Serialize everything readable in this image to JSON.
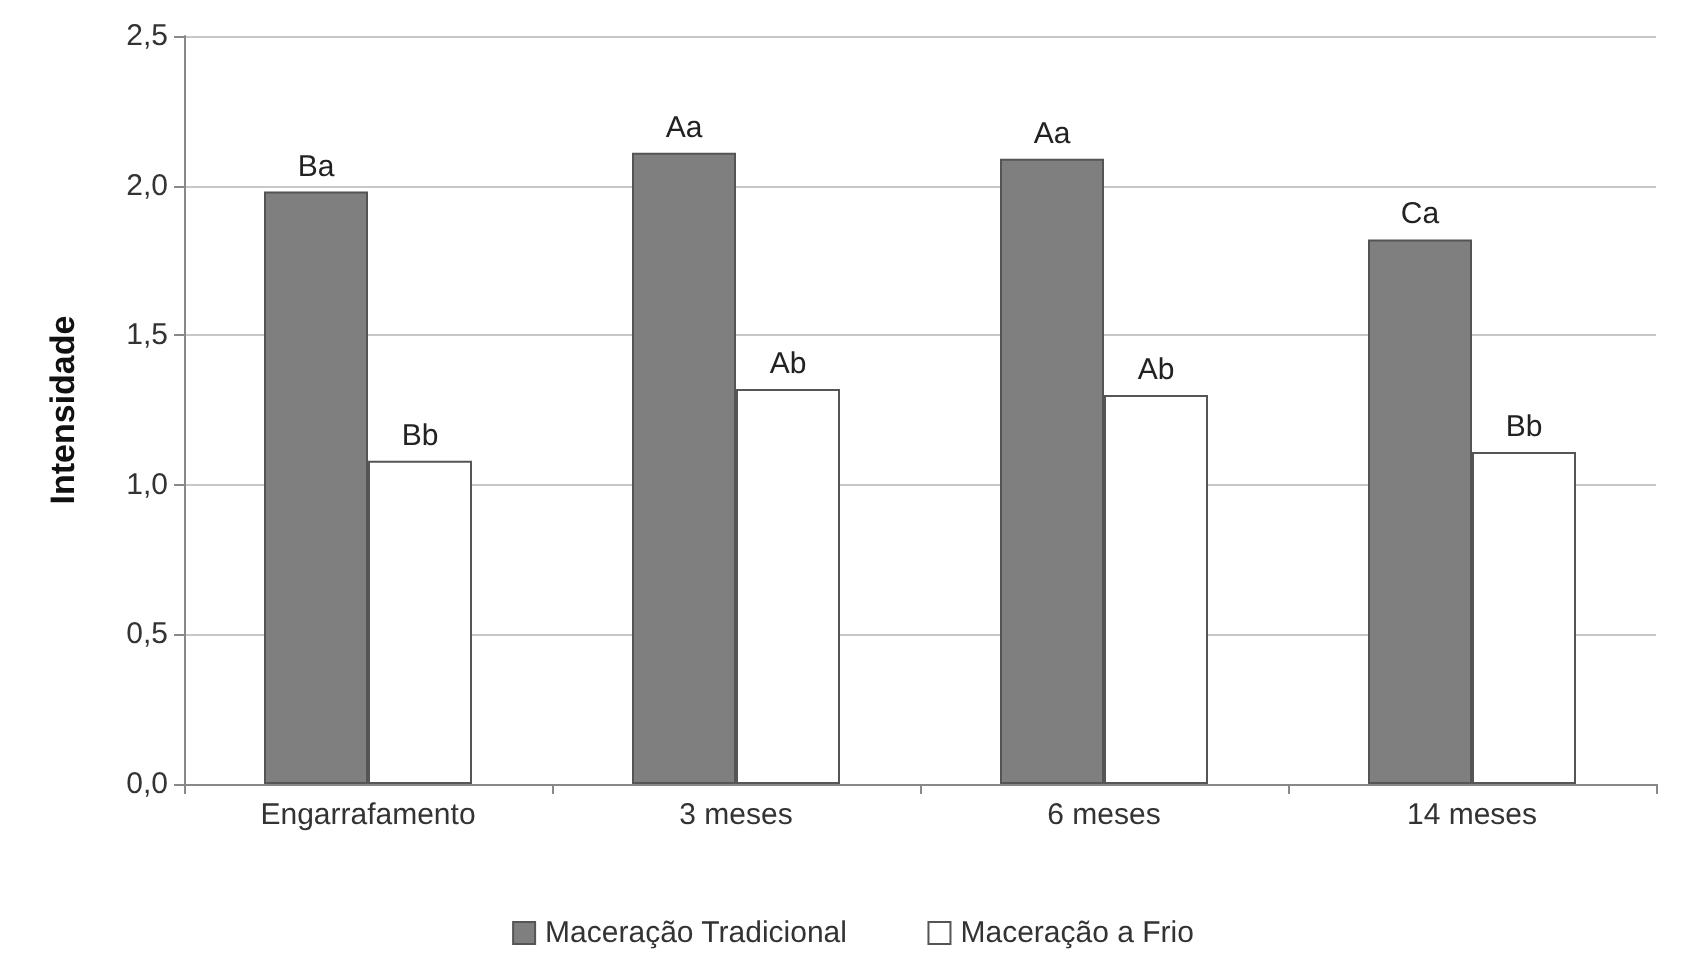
{
  "chart_data": {
    "type": "bar",
    "ylabel": "Intensidade",
    "categories": [
      "Engarrafamento",
      "3 meses",
      "6 meses",
      "14 meses"
    ],
    "series": [
      {
        "name": "Maceração Tradicional",
        "color": "#7f7f7f",
        "values": [
          1.98,
          2.11,
          2.09,
          1.82
        ],
        "value_labels": [
          "Ba",
          "Aa",
          "Aa",
          "Ca"
        ]
      },
      {
        "name": "Maceração a Frio",
        "color": "#ffffff",
        "values": [
          1.08,
          1.32,
          1.3,
          1.11
        ],
        "value_labels": [
          "Bb",
          "Ab",
          "Ab",
          "Bb"
        ]
      }
    ],
    "ylim": [
      0,
      2.5
    ],
    "yticks": [
      {
        "value": 0,
        "label": "0,0"
      },
      {
        "value": 0.5,
        "label": "0,5"
      },
      {
        "value": 1,
        "label": "1,0"
      },
      {
        "value": 1.5,
        "label": "1,5"
      },
      {
        "value": 2,
        "label": "2,0"
      },
      {
        "value": 2.5,
        "label": "2,5"
      }
    ],
    "grid": "y",
    "legend": "bottom"
  }
}
